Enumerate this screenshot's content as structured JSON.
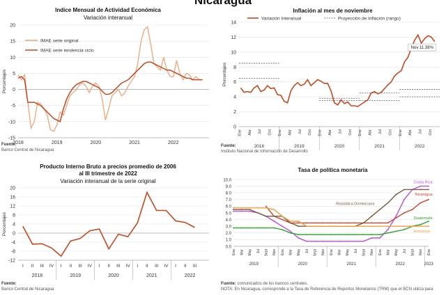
{
  "page_title": "Nicaragua",
  "panels": {
    "imae": {
      "title": "Indice Mensual de  Actividad Económica",
      "subtitle": "Variación interanual",
      "source_label": "Fuente:",
      "source_text": "Banco Central de Nicaragua"
    },
    "inflacion": {
      "title": "Inflación al mes de noviembre",
      "annotation": "Nov 11.38%",
      "source_label": "Fuente:",
      "source_text": "Instituto Nacional de Información de  Desarrollo"
    },
    "pib": {
      "title_line1": "Producto Interno Bruto a precios promedio de 2006",
      "title_line2": "al III trimestre de 2022",
      "subtitle": "Variación interanual de la serie original",
      "source_label": "Fuente:",
      "source_text": "Banco Central de Nicaragua"
    },
    "tasa": {
      "title": "Tasa de política monetaria",
      "source_label": "Fuente:",
      "source_text": "comunicados de los bancos centrales.",
      "note": "NOTA: En Nicaragua, corresponde a la Tasa de Referencia de Reportos Monetarios (TRM) que el BCN utiliza para"
    }
  },
  "colors": {
    "imae_original": "#f0a478",
    "imae_trend": "#c8471e",
    "inflation": "#c8471e",
    "projection": "#555555",
    "pib": "#c8471e",
    "costa_rica": "#b84fd6",
    "nicaragua": "#d0422a",
    "rep_dominicana": "#7a5a3c",
    "guatemala": "#2aa52a",
    "honduras": "#f0a040"
  },
  "chart_data": [
    {
      "type": "line",
      "title": "Indice Mensual de  Actividad Económica",
      "subtitle": "Variación interanual",
      "ylabel": "Porcentajes",
      "ylim": [
        -15,
        20
      ],
      "yticks": [
        -15,
        -10,
        -5,
        0,
        5,
        10,
        15,
        20
      ],
      "xlim": [
        2018.0,
        2022.92
      ],
      "xticks": [
        2018,
        2019,
        2020,
        2021,
        2022
      ],
      "series": [
        {
          "name": "IMAE serie original",
          "x": [
            2018.0,
            2018.083,
            2018.167,
            2018.25,
            2018.333,
            2018.417,
            2018.5,
            2018.583,
            2018.667,
            2018.75,
            2018.833,
            2018.917,
            2019.0,
            2019.083,
            2019.167,
            2019.25,
            2019.333,
            2019.417,
            2019.5,
            2019.583,
            2019.667,
            2019.75,
            2019.833,
            2019.917,
            2020.0,
            2020.083,
            2020.167,
            2020.25,
            2020.333,
            2020.417,
            2020.5,
            2020.583,
            2020.667,
            2020.75,
            2020.833,
            2020.917,
            2021.0,
            2021.083,
            2021.167,
            2021.25,
            2021.333,
            2021.417,
            2021.5,
            2021.583,
            2021.667,
            2021.75,
            2021.833,
            2021.917,
            2022.0,
            2022.083,
            2022.167,
            2022.25,
            2022.333,
            2022.417,
            2022.5,
            2022.583,
            2022.667,
            2022.75
          ],
          "values": [
            4.5,
            3.0,
            4.5,
            -4.0,
            -12.0,
            -10.0,
            -4.0,
            -4.5,
            -6.0,
            -8.0,
            -12.5,
            -13.0,
            -11.0,
            -7.0,
            -8.0,
            -5.0,
            -2.0,
            -1.0,
            0.0,
            1.5,
            2.0,
            1.0,
            -1.0,
            1.0,
            2.0,
            1.0,
            -3.0,
            -9.5,
            -6.0,
            -2.0,
            -1.0,
            0.0,
            -2.0,
            -1.0,
            1.0,
            2.5,
            4.0,
            8.0,
            15.0,
            18.5,
            19.5,
            14.0,
            8.0,
            7.0,
            6.0,
            10.0,
            6.0,
            4.0,
            4.0,
            9.0,
            5.0,
            3.0,
            5.0,
            4.5,
            3.0,
            4.0,
            3.0,
            3.0
          ]
        },
        {
          "name": "IMAE  serie  tendencia ciclo",
          "x": [
            2018.0,
            2018.083,
            2018.167,
            2018.25,
            2018.333,
            2018.417,
            2018.5,
            2018.583,
            2018.667,
            2018.75,
            2018.833,
            2018.917,
            2019.0,
            2019.083,
            2019.167,
            2019.25,
            2019.333,
            2019.417,
            2019.5,
            2019.583,
            2019.667,
            2019.75,
            2019.833,
            2019.917,
            2020.0,
            2020.083,
            2020.167,
            2020.25,
            2020.333,
            2020.417,
            2020.5,
            2020.583,
            2020.667,
            2020.75,
            2020.833,
            2020.917,
            2021.0,
            2021.083,
            2021.167,
            2021.25,
            2021.333,
            2021.417,
            2021.5,
            2021.583,
            2021.667,
            2021.75,
            2021.833,
            2021.917,
            2022.0,
            2022.083,
            2022.167,
            2022.25,
            2022.333,
            2022.417,
            2022.5,
            2022.583,
            2022.667,
            2022.75
          ],
          "values": [
            3.5,
            4.0,
            3.0,
            -4.0,
            -4.0,
            -4.0,
            -4.5,
            -5.0,
            -6.0,
            -7.0,
            -8.0,
            -9.0,
            -9.5,
            -10.0,
            -6.0,
            -3.0,
            -1.0,
            0.5,
            1.5,
            2.0,
            2.5,
            2.5,
            2.0,
            1.5,
            1.0,
            0.5,
            -0.5,
            -1.5,
            -1.5,
            -1.0,
            0.0,
            1.0,
            2.0,
            2.5,
            3.0,
            4.0,
            5.0,
            6.0,
            7.0,
            8.0,
            8.5,
            8.5,
            8.0,
            7.5,
            7.0,
            6.5,
            6.0,
            6.0,
            5.5,
            5.0,
            4.5,
            4.0,
            3.5,
            3.5,
            3.0,
            3.0,
            3.0,
            3.0
          ]
        }
      ]
    },
    {
      "type": "line",
      "title": "Inflación al mes de noviembre",
      "ylabel": "Porcentajes",
      "ylim": [
        0,
        14
      ],
      "yticks": [
        0,
        2,
        4,
        6,
        8,
        10,
        12,
        14
      ],
      "month_ticks": [
        "Ene",
        "Abr",
        "Jul",
        "Oct",
        "Ene",
        "Abr",
        "Jul",
        "Oct",
        "Ene",
        "Abr",
        "Jul",
        "Oct",
        "Ene",
        "Abr",
        "Jul",
        "Oct",
        "Ene",
        "Abr",
        "Jul",
        "Oct"
      ],
      "years": [
        "2018",
        "2019",
        "2020",
        "2021",
        "2022"
      ],
      "series": [
        {
          "name": "Variación Interanual",
          "x": [
            0,
            1,
            2,
            3,
            4,
            5,
            6,
            7,
            8,
            9,
            10,
            11,
            12,
            13,
            14,
            15,
            16,
            17,
            18,
            19,
            20,
            21,
            22,
            23,
            24,
            25,
            26,
            27,
            28,
            29,
            30,
            31,
            32,
            33,
            34,
            35,
            36,
            37,
            38,
            39,
            40,
            41,
            42,
            43,
            44,
            45,
            46,
            47,
            48,
            49,
            50,
            51,
            52,
            53,
            54,
            55,
            56,
            57,
            58
          ],
          "values": [
            5.2,
            4.6,
            4.7,
            4.6,
            5.2,
            5.5,
            4.7,
            4.9,
            5.5,
            5.1,
            5.2,
            4.3,
            4.2,
            3.4,
            3.2,
            4.8,
            5.5,
            5.9,
            5.5,
            5.7,
            6.3,
            5.5,
            5.9,
            6.3,
            6.1,
            5.8,
            5.8,
            4.8,
            3.2,
            2.9,
            3.6,
            3.1,
            3.3,
            2.8,
            2.8,
            2.7,
            3.0,
            3.3,
            3.6,
            4.5,
            4.7,
            4.4,
            4.6,
            5.1,
            5.6,
            6.0,
            6.8,
            7.2,
            7.5,
            8.7,
            9.3,
            10.5,
            11.6,
            12.3,
            11.2,
            11.8,
            12.2,
            12.0,
            11.4
          ]
        }
      ],
      "projection_ranges": [
        {
          "year": "2018",
          "low": 6.5,
          "high": 8.5
        },
        {
          "year": "2020",
          "low": 3.5,
          "high": 3.8
        },
        {
          "year": "2021",
          "low": 3.5,
          "high": 4.5
        },
        {
          "year": "2022",
          "low": 4.0,
          "high": 5.0
        }
      ],
      "projection_name": "Proyección de Inflación (rango)",
      "annotation": "Nov 11.38%"
    },
    {
      "type": "line",
      "title": "Producto Interno Bruto a precios promedio de 2006 al III trimestre de 2022",
      "subtitle": "Variación interanual de la serie original",
      "ylabel": "Porcentajes",
      "ylim": [
        -12,
        20
      ],
      "yticks": [
        -12,
        -8,
        -4,
        0,
        4,
        8,
        12,
        16,
        20
      ],
      "categories": [
        "I",
        "II",
        "III",
        "IV",
        "I",
        "II",
        "III",
        "IV",
        "I",
        "II",
        "III",
        "IV",
        "I",
        "II",
        "III",
        "IV",
        "I",
        "II",
        "III"
      ],
      "years": [
        "2018",
        "2019",
        "2020",
        "2021",
        "2022"
      ],
      "values": [
        3.0,
        -4.9,
        -4.7,
        -6.6,
        -10.2,
        -3.5,
        -2.4,
        1.0,
        1.8,
        -7.0,
        -0.5,
        -1.6,
        4.5,
        18.0,
        10.0,
        10.0,
        5.4,
        4.7,
        2.5
      ]
    },
    {
      "type": "line",
      "title": "Tasa de política monetaria",
      "ylim": [
        0,
        10
      ],
      "yticks": [
        "0.0",
        "1.0",
        "2.0",
        "3.0",
        "4.0",
        "5.0",
        "6.0",
        "7.0",
        "8.0",
        "9.0",
        "10.0"
      ],
      "month_labels": [
        "Ene",
        "Mar",
        "May",
        "Jul",
        "Sept",
        "Nov",
        "Ene",
        "Mar",
        "May",
        "Jul",
        "Sept",
        "Nov",
        "Ene",
        "Mar",
        "May",
        "Jul",
        "Sept",
        "Nov",
        "Ene",
        "Mar",
        "May",
        "Jul",
        "Sept",
        "Nov",
        "Ene"
      ],
      "years": [
        "2019",
        "2020",
        "2021",
        "2022",
        "2023"
      ],
      "series": [
        {
          "name": "Costa Rica",
          "values": [
            5.25,
            5.25,
            5.25,
            5.0,
            4.5,
            3.75,
            3.0,
            2.25,
            1.25,
            0.75,
            0.75,
            0.75,
            0.75,
            0.75,
            0.75,
            0.75,
            0.75,
            1.25,
            1.25,
            2.5,
            4.5,
            7.0,
            8.5,
            9.0,
            9.0
          ]
        },
        {
          "name": "Nicaragua",
          "values": [
            null,
            null,
            null,
            null,
            6.0,
            4.5,
            4.0,
            3.5,
            3.5,
            3.5,
            3.5,
            3.5,
            3.5,
            3.5,
            3.5,
            3.5,
            3.5,
            3.5,
            3.5,
            3.5,
            4.25,
            5.0,
            5.5,
            6.5,
            7.0
          ]
        },
        {
          "name": "República Dominicana",
          "values": [
            5.5,
            5.5,
            5.5,
            5.0,
            4.5,
            4.5,
            4.5,
            3.5,
            3.0,
            3.0,
            3.0,
            3.0,
            3.0,
            3.0,
            3.0,
            3.0,
            3.5,
            4.5,
            5.5,
            6.5,
            7.75,
            8.5,
            8.5,
            8.5,
            8.5
          ]
        },
        {
          "name": "Guatemala",
          "values": [
            2.75,
            2.75,
            2.75,
            2.75,
            2.75,
            2.75,
            2.5,
            2.0,
            1.75,
            1.75,
            1.75,
            1.75,
            1.75,
            1.75,
            1.75,
            1.75,
            1.75,
            1.75,
            1.75,
            2.0,
            2.25,
            2.5,
            3.0,
            3.25,
            3.75
          ]
        },
        {
          "name": "Honduras",
          "values": [
            5.75,
            5.75,
            5.75,
            5.75,
            5.75,
            5.5,
            4.5,
            3.75,
            3.75,
            3.0,
            3.0,
            3.0,
            3.0,
            3.0,
            3.0,
            3.0,
            3.0,
            3.0,
            3.0,
            3.0,
            3.0,
            3.0,
            3.0,
            3.0,
            3.0
          ]
        }
      ]
    }
  ]
}
